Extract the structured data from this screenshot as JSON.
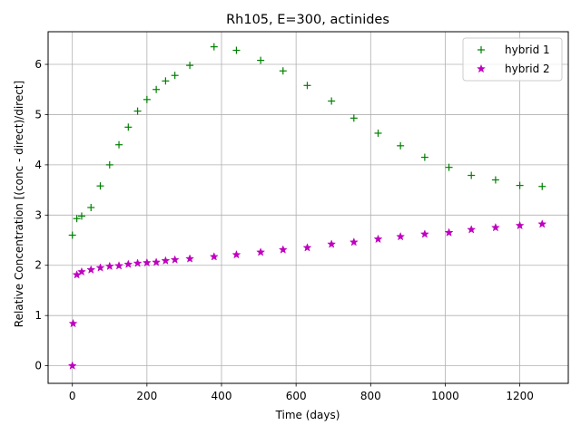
{
  "chart_data": {
    "type": "scatter",
    "title": "Rh105, E=300, actinides",
    "xlabel": "Time (days)",
    "ylabel": "Relative Concentration [(conc - direct)/direct]",
    "xlim": [
      -65,
      1330
    ],
    "ylim": [
      -0.35,
      6.65
    ],
    "xticks": [
      0,
      200,
      400,
      600,
      800,
      1000,
      1200
    ],
    "yticks": [
      0,
      1,
      2,
      3,
      4,
      5,
      6
    ],
    "grid": true,
    "legend_position": "top-right",
    "series": [
      {
        "name": "hybrid 1",
        "marker": "plus",
        "color": "#008000",
        "x": [
          0,
          12,
          25,
          50,
          75,
          100,
          125,
          150,
          175,
          200,
          225,
          250,
          275,
          315,
          380,
          440,
          505,
          565,
          630,
          695,
          755,
          820,
          880,
          945,
          1010,
          1070,
          1135,
          1200,
          1260
        ],
        "y": [
          2.6,
          2.93,
          2.98,
          3.15,
          3.58,
          4.0,
          4.4,
          4.75,
          5.07,
          5.3,
          5.5,
          5.67,
          5.78,
          5.98,
          6.35,
          6.28,
          6.08,
          5.87,
          5.58,
          5.27,
          4.93,
          4.63,
          4.38,
          4.15,
          3.95,
          3.79,
          3.7,
          3.59,
          3.57
        ]
      },
      {
        "name": "hybrid 2",
        "marker": "star",
        "color": "#bf00bf",
        "x": [
          0,
          2,
          12,
          25,
          50,
          75,
          100,
          125,
          150,
          175,
          200,
          225,
          250,
          275,
          315,
          380,
          440,
          505,
          565,
          630,
          695,
          755,
          820,
          880,
          945,
          1010,
          1070,
          1135,
          1200,
          1260
        ],
        "y": [
          0.0,
          0.84,
          1.81,
          1.87,
          1.91,
          1.95,
          1.98,
          1.99,
          2.02,
          2.04,
          2.05,
          2.06,
          2.09,
          2.11,
          2.13,
          2.17,
          2.21,
          2.26,
          2.31,
          2.35,
          2.42,
          2.46,
          2.52,
          2.57,
          2.62,
          2.65,
          2.71,
          2.75,
          2.79,
          2.82
        ]
      }
    ]
  }
}
